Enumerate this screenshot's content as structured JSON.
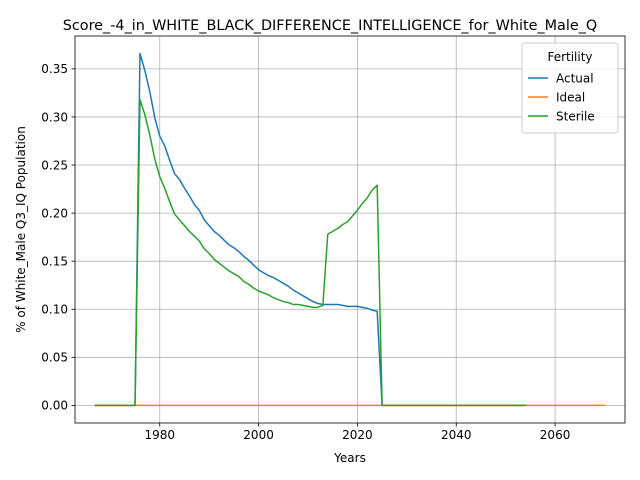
{
  "chart_data": {
    "type": "line",
    "title": "Score_-4_in_WHITE_BLACK_DIFFERENCE_INTELLIGENCE_for_White_Male_Q",
    "xlabel": "Years",
    "ylabel": "% of White_Male Q3_IQ Population",
    "xlim": [
      1962.85,
      2074.15
    ],
    "ylim": [
      -0.0183,
      0.3842
    ],
    "xticks": [
      1980,
      2000,
      2020,
      2040,
      2060
    ],
    "yticks": [
      0.0,
      0.05,
      0.1,
      0.15,
      0.2,
      0.25,
      0.3,
      0.35
    ],
    "ytick_labels": [
      "0.00",
      "0.05",
      "0.10",
      "0.15",
      "0.20",
      "0.25",
      "0.30",
      "0.35"
    ],
    "grid": true,
    "legend": {
      "title": "Fertility",
      "placement": "top-right"
    },
    "series": [
      {
        "name": "Actual",
        "color": "#1f77b4",
        "points": [
          [
            1967,
            0.0
          ],
          [
            1975,
            0.0
          ],
          [
            1976,
            0.366
          ],
          [
            1977,
            0.348
          ],
          [
            1978,
            0.326
          ],
          [
            1979,
            0.299
          ],
          [
            1980,
            0.28
          ],
          [
            1981,
            0.27
          ],
          [
            1982,
            0.255
          ],
          [
            1983,
            0.241
          ],
          [
            1984,
            0.235
          ],
          [
            1985,
            0.226
          ],
          [
            1986,
            0.218
          ],
          [
            1987,
            0.209
          ],
          [
            1988,
            0.203
          ],
          [
            1989,
            0.193
          ],
          [
            1990,
            0.187
          ],
          [
            1991,
            0.181
          ],
          [
            1992,
            0.177
          ],
          [
            1993,
            0.172
          ],
          [
            1994,
            0.167
          ],
          [
            1995,
            0.164
          ],
          [
            1996,
            0.16
          ],
          [
            1997,
            0.155
          ],
          [
            1998,
            0.151
          ],
          [
            1999,
            0.146
          ],
          [
            2000,
            0.141
          ],
          [
            2001,
            0.138
          ],
          [
            2002,
            0.135
          ],
          [
            2003,
            0.133
          ],
          [
            2004,
            0.13
          ],
          [
            2005,
            0.127
          ],
          [
            2006,
            0.124
          ],
          [
            2007,
            0.12
          ],
          [
            2008,
            0.117
          ],
          [
            2009,
            0.114
          ],
          [
            2010,
            0.111
          ],
          [
            2011,
            0.108
          ],
          [
            2012,
            0.106
          ],
          [
            2013,
            0.105
          ],
          [
            2014,
            0.105
          ],
          [
            2015,
            0.105
          ],
          [
            2016,
            0.105
          ],
          [
            2017,
            0.104
          ],
          [
            2018,
            0.103
          ],
          [
            2019,
            0.103
          ],
          [
            2020,
            0.103
          ],
          [
            2021,
            0.102
          ],
          [
            2022,
            0.101
          ],
          [
            2023,
            0.099
          ],
          [
            2024,
            0.098
          ],
          [
            2025,
            0.0
          ],
          [
            2054,
            0.0
          ]
        ]
      },
      {
        "name": "Ideal",
        "color": "#ff7f0e",
        "points": [
          [
            1967,
            0.0
          ],
          [
            2070,
            0.0
          ]
        ]
      },
      {
        "name": "Sterile",
        "color": "#2ca02c",
        "points": [
          [
            1967,
            0.0
          ],
          [
            1975,
            0.0
          ],
          [
            1976,
            0.318
          ],
          [
            1977,
            0.302
          ],
          [
            1978,
            0.281
          ],
          [
            1979,
            0.256
          ],
          [
            1980,
            0.238
          ],
          [
            1981,
            0.226
          ],
          [
            1982,
            0.212
          ],
          [
            1983,
            0.199
          ],
          [
            1984,
            0.193
          ],
          [
            1985,
            0.187
          ],
          [
            1986,
            0.181
          ],
          [
            1987,
            0.176
          ],
          [
            1988,
            0.171
          ],
          [
            1989,
            0.163
          ],
          [
            1990,
            0.158
          ],
          [
            1991,
            0.152
          ],
          [
            1992,
            0.148
          ],
          [
            1993,
            0.144
          ],
          [
            1994,
            0.14
          ],
          [
            1995,
            0.137
          ],
          [
            1996,
            0.134
          ],
          [
            1997,
            0.129
          ],
          [
            1998,
            0.126
          ],
          [
            1999,
            0.122
          ],
          [
            2000,
            0.119
          ],
          [
            2001,
            0.117
          ],
          [
            2002,
            0.115
          ],
          [
            2003,
            0.112
          ],
          [
            2004,
            0.11
          ],
          [
            2005,
            0.108
          ],
          [
            2006,
            0.107
          ],
          [
            2007,
            0.105
          ],
          [
            2008,
            0.105
          ],
          [
            2009,
            0.104
          ],
          [
            2010,
            0.103
          ],
          [
            2011,
            0.102
          ],
          [
            2012,
            0.102
          ],
          [
            2013,
            0.104
          ],
          [
            2014,
            0.178
          ],
          [
            2015,
            0.181
          ],
          [
            2016,
            0.184
          ],
          [
            2017,
            0.188
          ],
          [
            2018,
            0.191
          ],
          [
            2019,
            0.197
          ],
          [
            2020,
            0.203
          ],
          [
            2021,
            0.21
          ],
          [
            2022,
            0.216
          ],
          [
            2023,
            0.224
          ],
          [
            2024,
            0.229
          ],
          [
            2025,
            0.0
          ],
          [
            2054,
            0.0
          ]
        ]
      }
    ]
  }
}
